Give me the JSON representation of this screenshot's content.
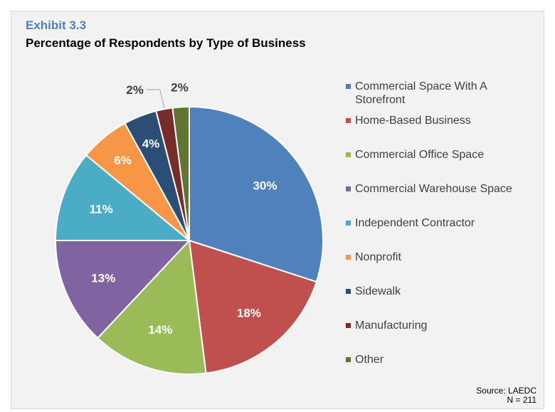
{
  "header": {
    "exhibit": "Exhibit 3.3",
    "title": "Percentage of Respondents by Type of Business"
  },
  "chart_data": {
    "type": "pie",
    "categories": [
      "Commercial Space With A Storefront",
      "Home-Based Business",
      "Commercial Office Space",
      "Commercial Warehouse Space",
      "Independent Contractor",
      "Nonprofit",
      "Sidewalk",
      "Manufacturing",
      "Other"
    ],
    "values": [
      30,
      18,
      14,
      13,
      11,
      6,
      4,
      2,
      2
    ],
    "labels": [
      "30%",
      "18%",
      "14%",
      "13%",
      "11%",
      "6%",
      "4%",
      "2%",
      "2%"
    ],
    "colors": [
      "#4f81bd",
      "#c0504d",
      "#9bbb59",
      "#8064a2",
      "#4bacc6",
      "#f79646",
      "#2c4d75",
      "#772c2a",
      "#5f7530"
    ],
    "legend_position": "right"
  },
  "footer": {
    "source": "Source: LAEDC",
    "n": "N = 211"
  }
}
